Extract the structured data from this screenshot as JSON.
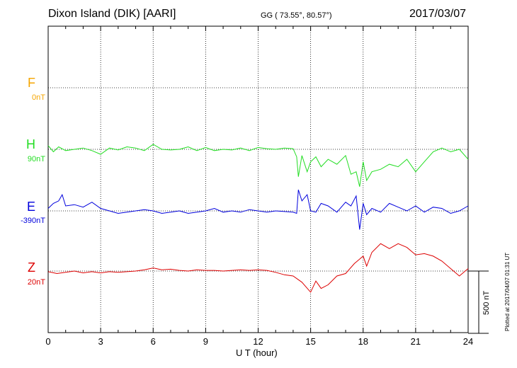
{
  "header": {
    "title": "Dixon Island (DIK)  [AARI]",
    "coords": "GG ( 73.55°,  80.57°)",
    "date": "2017/03/07"
  },
  "footer": {
    "xlabel": "U T (hour)",
    "plotted": "Plotted at 2017/04/07 01:31 UT",
    "scale": "500 nT"
  },
  "components": [
    {
      "letter": "F",
      "base": "0nT",
      "color": "#f5a500"
    },
    {
      "letter": "H",
      "base": "90nT",
      "color": "#22dd22"
    },
    {
      "letter": "E",
      "base": "-390nT",
      "color": "#0000dd"
    },
    {
      "letter": "Z",
      "base": "20nT",
      "color": "#dd0000"
    }
  ],
  "chart_data": {
    "type": "line",
    "title": "Dixon Island (DIK)  [AARI]",
    "xlabel": "U T (hour)",
    "ylabel": "",
    "xlim": [
      0,
      24
    ],
    "x_ticks": [
      0,
      3,
      6,
      9,
      12,
      15,
      18,
      21,
      24
    ],
    "scale_bar_nT": 500,
    "series": [
      {
        "name": "H",
        "base_nT": 90,
        "color": "#22dd22",
        "x": [
          0,
          0.3,
          0.6,
          1,
          1.5,
          2,
          2.5,
          3,
          3.5,
          4,
          4.5,
          5,
          5.5,
          6,
          6.5,
          7,
          7.5,
          8,
          8.5,
          9,
          9.5,
          10,
          10.5,
          11,
          11.5,
          12,
          12.5,
          13,
          13.5,
          14,
          14.2,
          14.3,
          14.5,
          14.8,
          15,
          15.3,
          15.6,
          16,
          16.5,
          17,
          17.3,
          17.6,
          17.8,
          18,
          18.2,
          18.5,
          19,
          19.5,
          20,
          20.5,
          21,
          21.5,
          22,
          22.5,
          23,
          23.5,
          24
        ],
        "y": [
          30,
          -20,
          20,
          -10,
          0,
          10,
          -10,
          -40,
          10,
          -5,
          20,
          10,
          -10,
          40,
          0,
          -5,
          0,
          20,
          -10,
          15,
          -10,
          0,
          -5,
          10,
          -10,
          15,
          5,
          0,
          10,
          5,
          -60,
          -220,
          -50,
          -180,
          -100,
          -60,
          -140,
          -80,
          -120,
          -50,
          -200,
          -180,
          -300,
          -100,
          -250,
          -180,
          -160,
          -120,
          -140,
          -80,
          -180,
          -100,
          -20,
          10,
          -20,
          0,
          -80
        ]
      },
      {
        "name": "E",
        "base_nT": -390,
        "color": "#0000dd",
        "x": [
          0,
          0.3,
          0.6,
          0.8,
          1,
          1.5,
          2,
          2.5,
          3,
          3.5,
          4,
          4.5,
          5,
          5.5,
          6,
          6.5,
          7,
          7.5,
          8,
          8.5,
          9,
          9.5,
          10,
          10.5,
          11,
          11.5,
          12,
          12.5,
          13,
          13.5,
          14,
          14.2,
          14.3,
          14.5,
          14.8,
          15,
          15.3,
          15.6,
          16,
          16.5,
          17,
          17.3,
          17.6,
          17.8,
          18,
          18.2,
          18.5,
          19,
          19.5,
          20,
          20.5,
          21,
          21.5,
          22,
          22.5,
          23,
          23.5,
          24
        ],
        "y": [
          20,
          60,
          80,
          130,
          40,
          50,
          30,
          70,
          20,
          0,
          -20,
          -10,
          0,
          10,
          0,
          -20,
          -10,
          0,
          -20,
          -10,
          0,
          20,
          -10,
          0,
          -10,
          10,
          0,
          -10,
          0,
          -5,
          -10,
          -20,
          170,
          80,
          130,
          0,
          -10,
          60,
          40,
          -10,
          70,
          40,
          120,
          -150,
          60,
          -30,
          20,
          -10,
          60,
          30,
          0,
          40,
          -10,
          30,
          20,
          -20,
          0,
          40
        ]
      },
      {
        "name": "Z",
        "base_nT": 20,
        "color": "#dd0000",
        "x": [
          0,
          0.5,
          1,
          1.5,
          2,
          2.5,
          3,
          3.5,
          4,
          4.5,
          5,
          5.5,
          6,
          6.5,
          7,
          7.5,
          8,
          8.5,
          9,
          9.5,
          10,
          10.5,
          11,
          11.5,
          12,
          12.5,
          13,
          13.5,
          14,
          14.5,
          15,
          15.3,
          15.6,
          16,
          16.5,
          17,
          17.5,
          18,
          18.2,
          18.5,
          19,
          19.5,
          20,
          20.5,
          21,
          21.5,
          22,
          22.5,
          23,
          23.5,
          24
        ],
        "y": [
          -5,
          -20,
          -10,
          0,
          -15,
          -5,
          -15,
          -5,
          -10,
          -5,
          0,
          10,
          25,
          10,
          15,
          5,
          0,
          10,
          5,
          5,
          0,
          5,
          10,
          5,
          10,
          5,
          -10,
          -30,
          -40,
          -90,
          -170,
          -80,
          -140,
          -110,
          -40,
          -20,
          60,
          120,
          40,
          150,
          220,
          180,
          220,
          190,
          130,
          140,
          120,
          80,
          20,
          -40,
          20
        ]
      }
    ]
  }
}
